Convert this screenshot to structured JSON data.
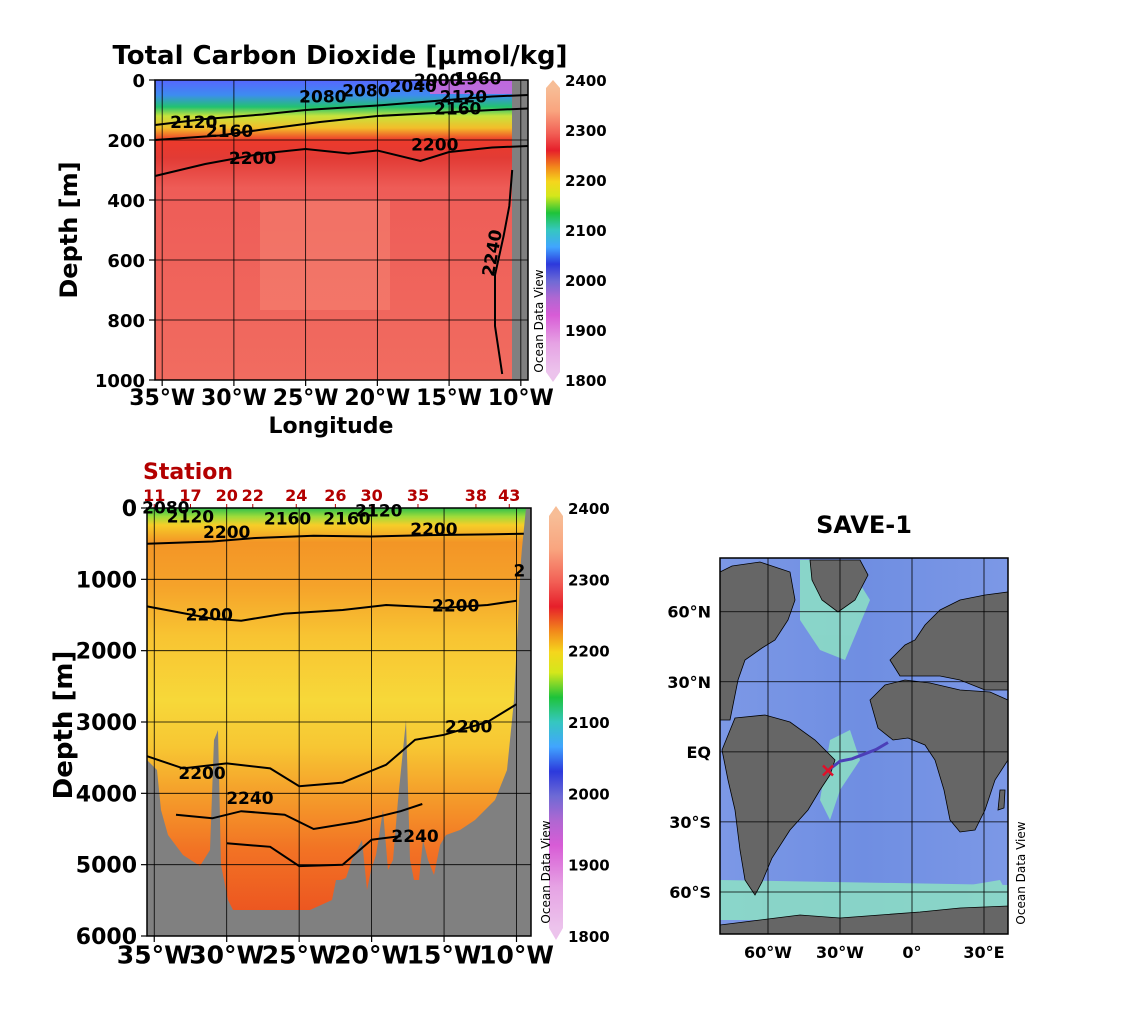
{
  "chart_data": [
    {
      "type": "heatmap",
      "title": "Total Carbon Dioxide [µmol/kg]",
      "xlabel": "Longitude",
      "ylabel": "Depth [m]",
      "x_tick_labels": [
        "35°W",
        "30°W",
        "25°W",
        "20°W",
        "15°W",
        "10°W"
      ],
      "x_ticks": [
        -35,
        -30,
        -25,
        -20,
        -15,
        -10
      ],
      "xlim": [
        -35.5,
        -9.5
      ],
      "y_tick_labels": [
        "0",
        "200",
        "400",
        "600",
        "800",
        "1000"
      ],
      "y_ticks": [
        0,
        200,
        400,
        600,
        800,
        1000
      ],
      "ylim": [
        1000,
        0
      ],
      "grid": true,
      "colorbar": {
        "ticks": [
          "2400",
          "2300",
          "2200",
          "2100",
          "2000",
          "1900",
          "1800"
        ],
        "range": [
          1800,
          2400
        ]
      },
      "watermark": "Ocean Data View",
      "contour_labels": [
        {
          "text": "2120",
          "x": -32.8,
          "y": 160
        },
        {
          "text": "2160",
          "x": -30.3,
          "y": 190
        },
        {
          "text": "2200",
          "x": -28.7,
          "y": 280
        },
        {
          "text": "2080",
          "x": -23.8,
          "y": 75
        },
        {
          "text": "2080",
          "x": -20.8,
          "y": 55
        },
        {
          "text": "2040",
          "x": -17.5,
          "y": 40
        },
        {
          "text": "2000",
          "x": -15.8,
          "y": 20
        },
        {
          "text": "1960",
          "x": -13.0,
          "y": 15
        },
        {
          "text": "2120",
          "x": -14.0,
          "y": 75
        },
        {
          "text": "2160",
          "x": -14.4,
          "y": 115
        },
        {
          "text": "2200",
          "x": -16.0,
          "y": 235
        },
        {
          "text": "2240",
          "x": -11.6,
          "y": 580
        }
      ],
      "contours": [
        {
          "level": 2120,
          "points": [
            [
              -35.5,
              150
            ],
            [
              -32,
              130
            ],
            [
              -28,
              115
            ],
            [
              -25,
              100
            ],
            [
              -20,
              85
            ],
            [
              -16,
              70
            ],
            [
              -12,
              55
            ],
            [
              -9.5,
              50
            ]
          ]
        },
        {
          "level": 2160,
          "points": [
            [
              -35.5,
              200
            ],
            [
              -31,
              185
            ],
            [
              -28,
              165
            ],
            [
              -24,
              140
            ],
            [
              -20,
              120
            ],
            [
              -16,
              110
            ],
            [
              -12,
              100
            ],
            [
              -9.5,
              95
            ]
          ]
        },
        {
          "level": 2200,
          "points": [
            [
              -35.5,
              320
            ],
            [
              -32,
              280
            ],
            [
              -28,
              245
            ],
            [
              -25,
              230
            ],
            [
              -22,
              245
            ],
            [
              -20,
              235
            ],
            [
              -17,
              270
            ],
            [
              -15,
              240
            ],
            [
              -12,
              225
            ],
            [
              -9.5,
              220
            ]
          ]
        },
        {
          "level": 2240,
          "points": [
            [
              -11.3,
              980
            ],
            [
              -11.8,
              820
            ],
            [
              -11.8,
              650
            ],
            [
              -11.2,
              520
            ],
            [
              -10.8,
              420
            ],
            [
              -10.6,
              300
            ]
          ]
        }
      ]
    },
    {
      "type": "heatmap",
      "ylabel": "Depth [m]",
      "x_tick_labels": [
        "35°W",
        "30°W",
        "25°W",
        "20°W",
        "15°W",
        "10°W"
      ],
      "x_ticks": [
        -35,
        -30,
        -25,
        -20,
        -15,
        -10
      ],
      "xlim": [
        -35.5,
        -9.0
      ],
      "y_tick_labels": [
        "0",
        "1000",
        "2000",
        "3000",
        "4000",
        "5000",
        "6000"
      ],
      "y_ticks": [
        0,
        1000,
        2000,
        3000,
        4000,
        5000,
        6000
      ],
      "ylim": [
        6000,
        0
      ],
      "grid": true,
      "station_label": "Station",
      "stations": [
        {
          "label": "11",
          "lon": -35.0
        },
        {
          "label": "17",
          "lon": -32.5
        },
        {
          "label": "20",
          "lon": -30.0
        },
        {
          "label": "22",
          "lon": -28.2
        },
        {
          "label": "24",
          "lon": -25.2
        },
        {
          "label": "26",
          "lon": -22.5
        },
        {
          "label": "30",
          "lon": -20.0
        },
        {
          "label": "35",
          "lon": -16.8
        },
        {
          "label": "38",
          "lon": -12.8
        },
        {
          "label": "43",
          "lon": -10.5
        }
      ],
      "colorbar": {
        "ticks": [
          "2400",
          "2300",
          "2200",
          "2100",
          "2000",
          "1900",
          "1800"
        ],
        "range": [
          1800,
          2400
        ]
      },
      "watermark": "Ocean Data View",
      "contour_labels": [
        {
          "text": "2080",
          "x": -34.2,
          "y": 80
        },
        {
          "text": "2120",
          "x": -32.5,
          "y": 200
        },
        {
          "text": "2200",
          "x": -30.0,
          "y": 420
        },
        {
          "text": "2160",
          "x": -25.8,
          "y": 230
        },
        {
          "text": "2160",
          "x": -21.7,
          "y": 230
        },
        {
          "text": "2120",
          "x": -19.5,
          "y": 120
        },
        {
          "text": "2200",
          "x": -15.7,
          "y": 380
        },
        {
          "text": "2",
          "x": -9.8,
          "y": 960
        },
        {
          "text": "2200",
          "x": -31.2,
          "y": 1580
        },
        {
          "text": "2200",
          "x": -14.2,
          "y": 1450
        },
        {
          "text": "2200",
          "x": -13.3,
          "y": 3150
        },
        {
          "text": "2200",
          "x": -31.7,
          "y": 3800
        },
        {
          "text": "2240",
          "x": -28.4,
          "y": 4150
        },
        {
          "text": "2240",
          "x": -17.0,
          "y": 4680
        }
      ],
      "contours": [
        {
          "level": 2200,
          "points": [
            [
              -35.5,
              500
            ],
            [
              -31,
              470
            ],
            [
              -28,
              420
            ],
            [
              -24,
              390
            ],
            [
              -20,
              400
            ],
            [
              -16,
              380
            ],
            [
              -12,
              370
            ],
            [
              -9.5,
              360
            ]
          ]
        },
        {
          "level": 2200,
          "points": [
            [
              -35.5,
              1380
            ],
            [
              -31,
              1550
            ],
            [
              -29,
              1580
            ],
            [
              -26,
              1480
            ],
            [
              -22,
              1430
            ],
            [
              -19,
              1360
            ],
            [
              -15,
              1400
            ],
            [
              -12,
              1360
            ],
            [
              -10,
              1300
            ]
          ]
        },
        {
          "level": 2200,
          "points": [
            [
              -35.5,
              3480
            ],
            [
              -33,
              3650
            ],
            [
              -30,
              3580
            ],
            [
              -27,
              3650
            ],
            [
              -25,
              3900
            ],
            [
              -22,
              3850
            ],
            [
              -19,
              3600
            ],
            [
              -17,
              3250
            ],
            [
              -15,
              3180
            ],
            [
              -12,
              3000
            ],
            [
              -10,
              2750
            ]
          ]
        },
        {
          "level": 2240,
          "points": [
            [
              -33.5,
              4300
            ],
            [
              -31,
              4350
            ],
            [
              -29,
              4250
            ],
            [
              -26,
              4300
            ],
            [
              -24,
              4500
            ],
            [
              -21,
              4400
            ],
            [
              -18,
              4250
            ],
            [
              -16.5,
              4150
            ]
          ]
        },
        {
          "level": 2240,
          "points": [
            [
              -30,
              4700
            ],
            [
              -27,
              4750
            ],
            [
              -25,
              5020
            ],
            [
              -22,
              5000
            ],
            [
              -20,
              4650
            ],
            [
              -18,
              4600
            ]
          ]
        }
      ]
    }
  ],
  "map": {
    "title": "SAVE-1",
    "lat_labels": [
      "60°N",
      "30°N",
      "EQ",
      "30°S",
      "60°S"
    ],
    "lats": [
      60,
      30,
      0,
      -30,
      -60
    ],
    "lon_labels": [
      "60°W",
      "30°W",
      "0°",
      "30°E"
    ],
    "lons": [
      -60,
      -30,
      0,
      30
    ],
    "lon_range": [
      -80,
      40
    ],
    "lat_range": [
      -78,
      83
    ],
    "cruise_track": [
      [
        -35,
        -8
      ],
      [
        -30,
        -4
      ],
      [
        -25,
        -3
      ],
      [
        -20,
        -1
      ],
      [
        -15,
        1
      ],
      [
        -10,
        4
      ]
    ],
    "watermark": "Ocean Data View"
  }
}
